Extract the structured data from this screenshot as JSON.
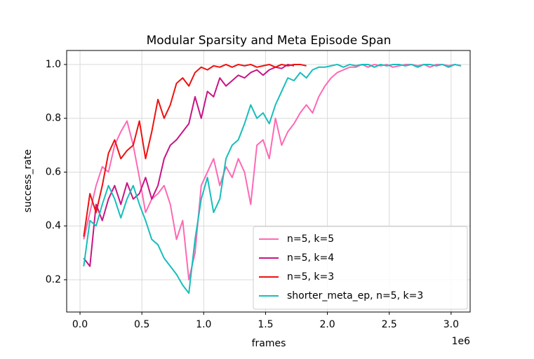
{
  "chart_data": {
    "type": "line",
    "title": "Modular Sparsity and Meta Episode Span",
    "x_label": "frames",
    "y_label": "success_rate",
    "x_offset_label": "1e6",
    "x": [
      30000,
      80000,
      130000,
      180000,
      230000,
      280000,
      330000,
      380000,
      430000,
      480000,
      530000,
      580000,
      630000,
      680000,
      730000,
      780000,
      830000,
      880000,
      930000,
      980000,
      1030000,
      1080000,
      1130000,
      1180000,
      1230000,
      1280000,
      1330000,
      1380000,
      1430000,
      1480000,
      1530000,
      1580000,
      1630000,
      1680000,
      1730000,
      1780000,
      1830000,
      1880000,
      1930000,
      1980000,
      2030000,
      2080000,
      2130000,
      2180000,
      2230000,
      2280000,
      2330000,
      2380000,
      2430000,
      2480000,
      2530000,
      2580000,
      2630000,
      2680000,
      2730000,
      2780000,
      2830000,
      2880000,
      2930000,
      2980000,
      3030000,
      3080000
    ],
    "series": [
      {
        "name": "n=5, k=5",
        "color": "#ff69b4",
        "values": [
          0.35,
          0.45,
          0.55,
          0.62,
          0.6,
          0.7,
          0.75,
          0.79,
          0.7,
          0.58,
          0.45,
          0.5,
          0.52,
          0.55,
          0.48,
          0.35,
          0.42,
          0.2,
          0.3,
          0.55,
          0.6,
          0.65,
          0.55,
          0.62,
          0.58,
          0.65,
          0.6,
          0.48,
          0.7,
          0.72,
          0.65,
          0.8,
          0.7,
          0.75,
          0.78,
          0.82,
          0.85,
          0.82,
          0.88,
          0.92,
          0.95,
          0.97,
          0.98,
          0.99,
          0.99,
          1.0,
          0.99,
          1.0,
          0.995,
          1.0,
          0.99,
          0.995,
          1.0,
          1.0,
          0.995,
          1.0,
          0.99,
          1.0,
          1.0,
          0.995,
          1.0,
          0.995
        ]
      },
      {
        "name": "n=5, k=4",
        "color": "#c71585",
        "values": [
          0.28,
          0.25,
          0.48,
          0.42,
          0.5,
          0.55,
          0.48,
          0.56,
          0.5,
          0.52,
          0.58,
          0.5,
          0.55,
          0.65,
          0.7,
          0.72,
          0.75,
          0.78,
          0.88,
          0.8,
          0.9,
          0.88,
          0.95,
          0.92,
          0.94,
          0.96,
          0.95,
          0.97,
          0.98,
          0.96,
          0.98,
          0.99,
          0.985,
          1.0,
          0.995,
          null,
          null,
          null,
          null,
          null,
          null,
          null,
          null,
          null,
          null,
          null,
          null,
          null,
          null,
          null,
          null,
          null,
          null,
          null,
          null,
          null,
          null,
          null,
          null,
          null,
          null,
          null
        ]
      },
      {
        "name": "n=5, k=3",
        "color": "#ee1111",
        "values": [
          0.36,
          0.52,
          0.45,
          0.55,
          0.67,
          0.72,
          0.65,
          0.68,
          0.7,
          0.79,
          0.65,
          0.75,
          0.87,
          0.8,
          0.85,
          0.93,
          0.95,
          0.92,
          0.97,
          0.99,
          0.98,
          0.995,
          0.99,
          1.0,
          0.99,
          1.0,
          0.995,
          1.0,
          0.99,
          0.995,
          1.0,
          0.99,
          1.0,
          0.995,
          1.0,
          1.0,
          0.995,
          null,
          null,
          null,
          null,
          null,
          null,
          null,
          null,
          null,
          null,
          null,
          null,
          null,
          null,
          null,
          null,
          null,
          null,
          null,
          null,
          null,
          null,
          null,
          null,
          null
        ]
      },
      {
        "name": "shorter_meta_ep, n=5, k=3",
        "color": "#17bebb",
        "values": [
          0.25,
          0.42,
          0.4,
          0.48,
          0.55,
          0.5,
          0.43,
          0.5,
          0.55,
          0.48,
          0.42,
          0.35,
          0.33,
          0.28,
          0.25,
          0.22,
          0.18,
          0.15,
          0.35,
          0.5,
          0.58,
          0.45,
          0.5,
          0.65,
          0.7,
          0.72,
          0.78,
          0.85,
          0.8,
          0.82,
          0.78,
          0.85,
          0.9,
          0.95,
          0.94,
          0.97,
          0.95,
          0.98,
          0.99,
          0.99,
          0.995,
          1.0,
          0.99,
          1.0,
          0.995,
          1.0,
          1.0,
          0.99,
          1.0,
          0.995,
          1.0,
          1.0,
          0.995,
          1.0,
          0.99,
          1.0,
          1.0,
          0.995,
          1.0,
          0.99,
          1.0,
          0.995
        ]
      }
    ],
    "xlim": [
      -108000,
      3154000
    ],
    "ylim": [
      0.08,
      1.052
    ],
    "xticks": [
      {
        "value": 0,
        "label": "0.0"
      },
      {
        "value": 500000,
        "label": "0.5"
      },
      {
        "value": 1000000,
        "label": "1.0"
      },
      {
        "value": 1500000,
        "label": "1.5"
      },
      {
        "value": 2000000,
        "label": "2.0"
      },
      {
        "value": 2500000,
        "label": "2.5"
      },
      {
        "value": 3000000,
        "label": "3.0"
      }
    ],
    "yticks": [
      0.2,
      0.4,
      0.6,
      0.8,
      {
        "value": 1,
        "label": "1.0"
      }
    ],
    "grid": true,
    "legend": "lower right"
  }
}
